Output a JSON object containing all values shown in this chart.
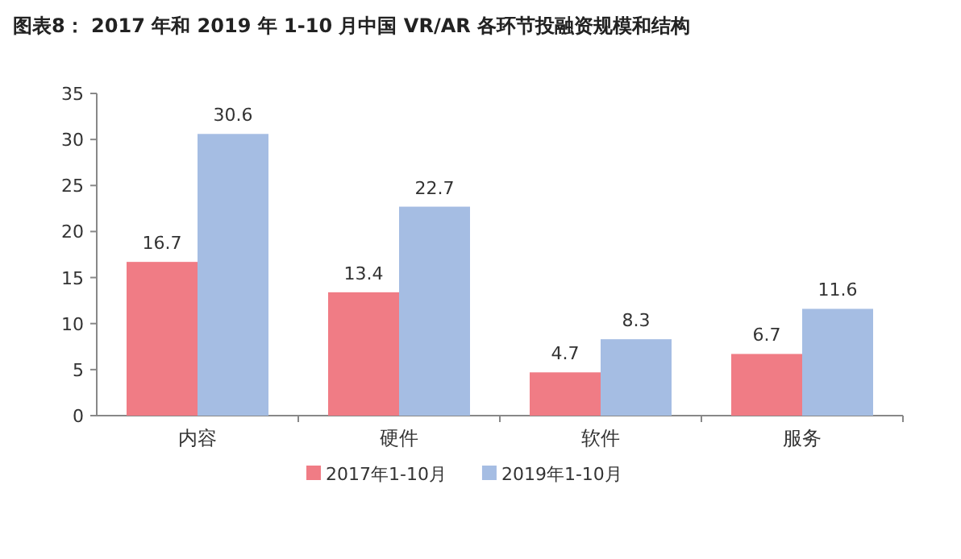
{
  "chart_data": {
    "type": "bar",
    "title": "图表8： 2017 年和 2019 年 1-10 月中国 VR/AR 各环节投融资规模和结构",
    "categories": [
      "内容",
      "硬件",
      "软件",
      "服务"
    ],
    "series": [
      {
        "name": "2017年1-10月",
        "color": "#f07c85",
        "values": [
          16.7,
          13.4,
          4.7,
          6.7
        ]
      },
      {
        "name": "2019年1-10月",
        "color": "#a5bde3",
        "values": [
          30.6,
          22.7,
          8.3,
          11.6
        ]
      }
    ],
    "ylim": [
      0,
      35
    ],
    "yticks": [
      0,
      5,
      10,
      15,
      20,
      25,
      30,
      35
    ],
    "grid": false,
    "legend": "bottom",
    "data_labels": true
  }
}
